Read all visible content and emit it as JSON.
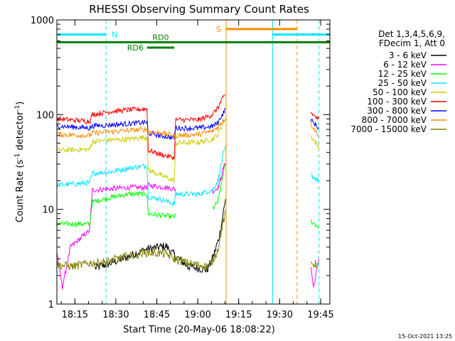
{
  "chart_data": {
    "type": "line",
    "title": "RHESSI Observing Summary Count Rates",
    "xlabel": "Start Time (20-May-06 18:08:22)",
    "ylabel_main": "Count Rate (s",
    "ylabel_sup1": "-1",
    "ylabel_mid": " detector",
    "ylabel_sup2": "-1",
    "ylabel_end": ")",
    "yscale": "log",
    "xlim_minutes": [
      0,
      100
    ],
    "ylim": [
      1,
      1000
    ],
    "x_ticks": [
      {
        "label": "18:15",
        "value": 6.6
      },
      {
        "label": "18:30",
        "value": 21.6
      },
      {
        "label": "18:45",
        "value": 36.6
      },
      {
        "label": "19:00",
        "value": 51.6
      },
      {
        "label": "19:15",
        "value": 66.6
      },
      {
        "label": "19:30",
        "value": 81.6
      },
      {
        "label": "19:45",
        "value": 96.6
      }
    ],
    "y_ticks": [
      {
        "label": "1",
        "value": 1
      },
      {
        "label": "10",
        "value": 10
      },
      {
        "label": "100",
        "value": 100
      },
      {
        "label": "1000",
        "value": 1000
      }
    ],
    "legend_header": [
      "Det 1,3,4,5,6,9,",
      "FDecim 1, Att 0"
    ],
    "footer_timestamp": "15-Oct-2021 13:25",
    "flags": {
      "night": {
        "label": "N",
        "color": "#00e5ff",
        "intervals": [
          [
            0,
            18
          ],
          [
            79,
            100
          ]
        ],
        "level": 700
      },
      "saa": {
        "label": "S",
        "color": "#ff8c00",
        "intervals": [
          [
            62,
            88
          ]
        ],
        "level": 800
      },
      "rd0": {
        "label": "RD0",
        "color": "#008000",
        "intervals": [
          [
            0,
            100
          ]
        ],
        "level": 580
      },
      "rd6": {
        "label": "RD6",
        "color": "#008000",
        "intervals": [
          [
            33,
            43
          ]
        ],
        "level": 510
      }
    },
    "vlines": [
      {
        "x": 0,
        "color": "#00e5ff",
        "style": "solid"
      },
      {
        "x": 18,
        "color": "#00e5ff",
        "style": "dashed"
      },
      {
        "x": 62,
        "color": "#ff8c00",
        "style": "solid"
      },
      {
        "x": 79,
        "color": "#00e5ff",
        "style": "solid"
      },
      {
        "x": 88,
        "color": "#ff8c00",
        "style": "dashed"
      },
      {
        "x": 96,
        "color": "#00e5ff",
        "style": "dashed"
      }
    ],
    "series": [
      {
        "name": "3 - 6 keV",
        "color": "#000000",
        "points": [
          [
            14,
            2.4
          ],
          [
            18,
            2.6
          ],
          [
            24,
            3.0
          ],
          [
            33,
            3.8
          ],
          [
            40,
            4.1
          ],
          [
            43,
            3.3
          ],
          [
            48,
            2.5
          ],
          [
            55,
            2.3
          ],
          [
            57,
            3.0
          ],
          [
            59,
            4.6
          ],
          [
            60,
            6.0
          ],
          [
            61,
            9.5
          ],
          [
            61.8,
            13
          ]
        ]
      },
      {
        "name": "6 - 12 keV",
        "color": "#ff00ff",
        "points": [
          [
            0,
            3.5
          ],
          [
            2,
            1.5
          ],
          [
            5,
            4
          ],
          [
            12,
            6
          ],
          [
            13,
            16
          ],
          [
            20,
            16.5
          ],
          [
            26,
            17
          ],
          [
            33,
            17
          ],
          [
            33.5,
            18
          ],
          [
            43,
            16.5
          ],
          [
            43.5,
            16
          ],
          [
            57,
            15.5
          ],
          [
            59,
            17
          ],
          [
            60,
            21
          ],
          [
            61,
            27
          ],
          [
            61.8,
            32
          ],
          [
            93,
            2.5
          ],
          [
            94,
            1.5
          ],
          [
            96,
            3
          ]
        ]
      },
      {
        "name": "12 - 25 keV",
        "color": "#00ff00",
        "points": [
          [
            0,
            7
          ],
          [
            12,
            7
          ],
          [
            13,
            12
          ],
          [
            18,
            13
          ],
          [
            26,
            14.5
          ],
          [
            33,
            14.5
          ],
          [
            33.5,
            9
          ],
          [
            43,
            8.3
          ],
          [
            43.5,
            8.5
          ],
          [
            57,
            10
          ],
          [
            59,
            12
          ],
          [
            60,
            17
          ],
          [
            61,
            24
          ],
          [
            61.8,
            30
          ],
          [
            93,
            7.5
          ],
          [
            96,
            6.5
          ]
        ]
      },
      {
        "name": "25 - 50 keV",
        "color": "#00e5ff",
        "points": [
          [
            0,
            18
          ],
          [
            12,
            19
          ],
          [
            13,
            24
          ],
          [
            20,
            25
          ],
          [
            26,
            27
          ],
          [
            33,
            29
          ],
          [
            33.5,
            13.5
          ],
          [
            37,
            13
          ],
          [
            43,
            11.5
          ],
          [
            43.5,
            14.5
          ],
          [
            52,
            14.5
          ],
          [
            57,
            16
          ],
          [
            59,
            20
          ],
          [
            60,
            28
          ],
          [
            61,
            38
          ],
          [
            61.8,
            45
          ],
          [
            93,
            23
          ],
          [
            96,
            20
          ]
        ]
      },
      {
        "name": "50 - 100 keV",
        "color": "#cccc00",
        "points": [
          [
            0,
            42
          ],
          [
            12,
            43
          ],
          [
            13,
            52
          ],
          [
            20,
            54
          ],
          [
            26,
            55
          ],
          [
            33,
            58
          ],
          [
            33.5,
            26
          ],
          [
            38,
            23
          ],
          [
            43,
            20
          ],
          [
            43.5,
            50
          ],
          [
            52,
            51
          ],
          [
            57,
            55
          ],
          [
            59,
            62
          ],
          [
            60,
            72
          ],
          [
            61,
            85
          ],
          [
            61.8,
            92
          ],
          [
            93,
            60
          ],
          [
            96,
            45
          ]
        ]
      },
      {
        "name": "100 - 300 keV",
        "color": "#ff0000",
        "points": [
          [
            0,
            90
          ],
          [
            12,
            85
          ],
          [
            13,
            100
          ],
          [
            20,
            108
          ],
          [
            26,
            112
          ],
          [
            33,
            115
          ],
          [
            33.5,
            42
          ],
          [
            38,
            38
          ],
          [
            43,
            35
          ],
          [
            43.5,
            88
          ],
          [
            52,
            88
          ],
          [
            57,
            100
          ],
          [
            59,
            118
          ],
          [
            60,
            135
          ],
          [
            61,
            152
          ],
          [
            61.8,
            165
          ],
          [
            93,
            105
          ],
          [
            96,
            88
          ]
        ]
      },
      {
        "name": "300 - 800 keV",
        "color": "#0000ff",
        "points": [
          [
            0,
            76
          ],
          [
            12,
            72
          ],
          [
            13,
            76
          ],
          [
            20,
            78
          ],
          [
            26,
            80
          ],
          [
            33,
            83
          ],
          [
            33.5,
            64
          ],
          [
            38,
            60
          ],
          [
            43,
            57
          ],
          [
            43.5,
            72
          ],
          [
            52,
            72
          ],
          [
            57,
            75
          ],
          [
            59,
            82
          ],
          [
            60,
            93
          ],
          [
            61,
            105
          ],
          [
            61.8,
            115
          ],
          [
            93,
            88
          ],
          [
            96,
            72
          ]
        ]
      },
      {
        "name": "800 - 7000 keV",
        "color": "#ff8c00",
        "points": [
          [
            0,
            62
          ],
          [
            12,
            60
          ],
          [
            13,
            64
          ],
          [
            20,
            66
          ],
          [
            26,
            68
          ],
          [
            33,
            70
          ],
          [
            33.5,
            66
          ],
          [
            38,
            64
          ],
          [
            43,
            60
          ],
          [
            43.5,
            60
          ],
          [
            52,
            62
          ],
          [
            57,
            67
          ],
          [
            59,
            74
          ],
          [
            60,
            80
          ],
          [
            61,
            88
          ],
          [
            61.8,
            92
          ],
          [
            93,
            80
          ],
          [
            96,
            60
          ]
        ]
      },
      {
        "name": "7000 - 15000 keV",
        "color": "#808000",
        "points": [
          [
            0,
            2.6
          ],
          [
            6,
            2.5
          ],
          [
            12,
            2.7
          ],
          [
            18,
            2.8
          ],
          [
            24,
            3.1
          ],
          [
            33,
            3.5
          ],
          [
            40,
            3.4
          ],
          [
            43,
            3.0
          ],
          [
            48,
            2.7
          ],
          [
            55,
            2.5
          ],
          [
            57,
            2.8
          ],
          [
            59,
            3.8
          ],
          [
            60,
            5.5
          ],
          [
            61,
            7.5
          ],
          [
            61.8,
            9
          ],
          [
            93,
            2.7
          ],
          [
            96,
            2.6
          ]
        ]
      }
    ]
  }
}
